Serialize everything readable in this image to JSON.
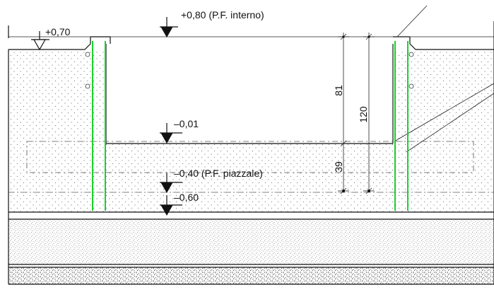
{
  "levels": {
    "lvl_p080": "+0,80  (P.F. interno)",
    "lvl_p070": "+0,70",
    "lvl_m001": "–0,01",
    "lvl_m040": "–0,40  (P.F. piazzale)",
    "lvl_m060": "–0,60"
  },
  "dimensions": {
    "dim_81": "81",
    "dim_120": "120",
    "dim_39": "39"
  },
  "colors": {
    "line": "#111111",
    "rebar": "#19d12c",
    "hatch": "#6f6f6f"
  }
}
